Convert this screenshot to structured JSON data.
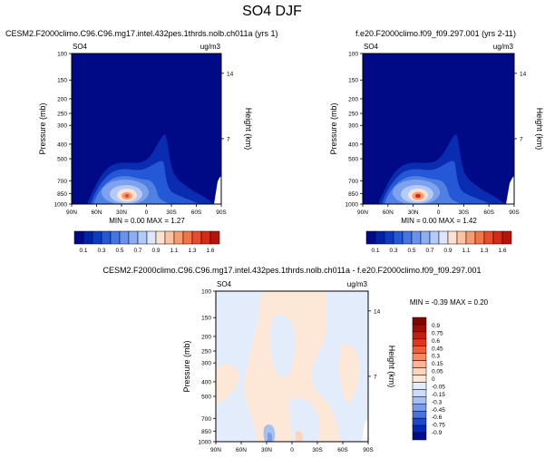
{
  "figure": {
    "title": "SO4 DJF",
    "panels": [
      {
        "id": "p1",
        "left_title": "CESM2.F2000climo.C96.C96.mg17.intel.432pes.1thrds.nolb.ch011a (yrs 1)",
        "corner_left": "SO4",
        "corner_right": "ug/m3",
        "stats": "MIN =   0.00   MAX =   1.27"
      },
      {
        "id": "p2",
        "left_title": "f.e20.F2000climo.f09_f09.297.001 (yrs 2-11)",
        "corner_left": "SO4",
        "corner_right": "ug/m3",
        "stats": "MIN =   0.00   MAX =   1.42"
      },
      {
        "id": "p3",
        "center_title": "CESM2.F2000climo.C96.C96.mg17.intel.432pes.1thrds.nolb.ch011a - f.e20.F2000climo.f09_f09.297.001",
        "corner_left": "SO4",
        "corner_right": "ug/m3",
        "stats": "MIN = -0.39   MAX =   0.20"
      }
    ]
  },
  "chart_data": [
    {
      "type": "heatmap",
      "title": "CESM2.F2000climo.C96.C96.mg17.intel.432pes.1thrds.nolb.ch011a (yrs 1)",
      "variable": "SO4",
      "units": "ug/m3",
      "xlabel": "",
      "ylabel": "Pressure (mb)",
      "y2label": "Height (km)",
      "x_ticks": [
        "90N",
        "60N",
        "30N",
        "0",
        "30S",
        "60S",
        "90S"
      ],
      "y_ticks": [
        "100",
        "150",
        "200",
        "250",
        "300",
        "400",
        "500",
        "700",
        "850",
        "1000"
      ],
      "y2_ticks": [
        "14",
        "7"
      ],
      "ylim": [
        1000,
        100
      ],
      "yscale": "log",
      "min": 0.0,
      "max": 1.27,
      "peak": {
        "lat": "25N",
        "pressure_mb": 875,
        "value": 1.27
      },
      "colorbar_labels": [
        "0.1",
        "0.3",
        "0.5",
        "0.7",
        "0.9",
        "1.1",
        "1.3",
        "1.6"
      ],
      "colorbar_levels": [
        0.1,
        0.2,
        0.3,
        0.4,
        0.5,
        0.6,
        0.7,
        0.8,
        0.9,
        1.0,
        1.1,
        1.2,
        1.3,
        1.4,
        1.6
      ]
    },
    {
      "type": "heatmap",
      "title": "f.e20.F2000climo.f09_f09.297.001 (yrs 2-11)",
      "variable": "SO4",
      "units": "ug/m3",
      "xlabel": "",
      "ylabel": "Pressure (mb)",
      "y2label": "Height (km)",
      "x_ticks": [
        "90N",
        "60N",
        "30N",
        "0",
        "30S",
        "60S",
        "90S"
      ],
      "y_ticks": [
        "100",
        "150",
        "200",
        "250",
        "300",
        "400",
        "500",
        "700",
        "850",
        "1000"
      ],
      "y2_ticks": [
        "14",
        "7"
      ],
      "ylim": [
        1000,
        100
      ],
      "yscale": "log",
      "min": 0.0,
      "max": 1.42,
      "peak": {
        "lat": "25N",
        "pressure_mb": 875,
        "value": 1.42
      },
      "colorbar_labels": [
        "0.1",
        "0.3",
        "0.5",
        "0.7",
        "0.9",
        "1.1",
        "1.3",
        "1.6"
      ],
      "colorbar_levels": [
        0.1,
        0.2,
        0.3,
        0.4,
        0.5,
        0.6,
        0.7,
        0.8,
        0.9,
        1.0,
        1.1,
        1.2,
        1.3,
        1.4,
        1.6
      ]
    },
    {
      "type": "heatmap",
      "title": "CESM2.F2000climo.C96.C96.mg17.intel.432pes.1thrds.nolb.ch011a - f.e20.F2000climo.f09_f09.297.001",
      "variable": "SO4",
      "units": "ug/m3",
      "xlabel": "",
      "ylabel": "Pressure (mb)",
      "y2label": "Height (km)",
      "x_ticks": [
        "90N",
        "60N",
        "30N",
        "0",
        "30S",
        "60S",
        "90S"
      ],
      "y_ticks": [
        "100",
        "150",
        "200",
        "250",
        "300",
        "400",
        "500",
        "700",
        "850",
        "1000"
      ],
      "y2_ticks": [
        "14",
        "7"
      ],
      "ylim": [
        1000,
        100
      ],
      "yscale": "log",
      "min": -0.39,
      "max": 0.2,
      "colorbar_labels": [
        "0.9",
        "0.75",
        "0.6",
        "0.45",
        "0.3",
        "0.15",
        "0.05",
        "0",
        "-0.05",
        "-0.15",
        "-0.3",
        "-0.45",
        "-0.6",
        "-0.75",
        "-0.9"
      ]
    }
  ],
  "colors": {
    "blues": [
      "#000a87",
      "#0022a8",
      "#0a3cc3",
      "#2458d6",
      "#4475e2",
      "#6892ec",
      "#8daef2",
      "#b3cbf8",
      "#dfe6fb"
    ],
    "reds": [
      "#fde2cf",
      "#fbc3a0",
      "#f89c70",
      "#f47347",
      "#e94c2a",
      "#d62a16",
      "#b71408",
      "#8e0a05"
    ],
    "diff_blues": [
      "#000e8c",
      "#0028b4",
      "#1e48cc",
      "#4a73dc",
      "#7c9ce8",
      "#a8c0f0",
      "#cfdcf7",
      "#e3ecfb"
    ],
    "diff_reds": [
      "#fde8d8",
      "#fcd5bf",
      "#fab497",
      "#f68a63",
      "#ef5f37",
      "#e23618",
      "#c51e0c",
      "#a00f07",
      "#7e0604"
    ]
  }
}
